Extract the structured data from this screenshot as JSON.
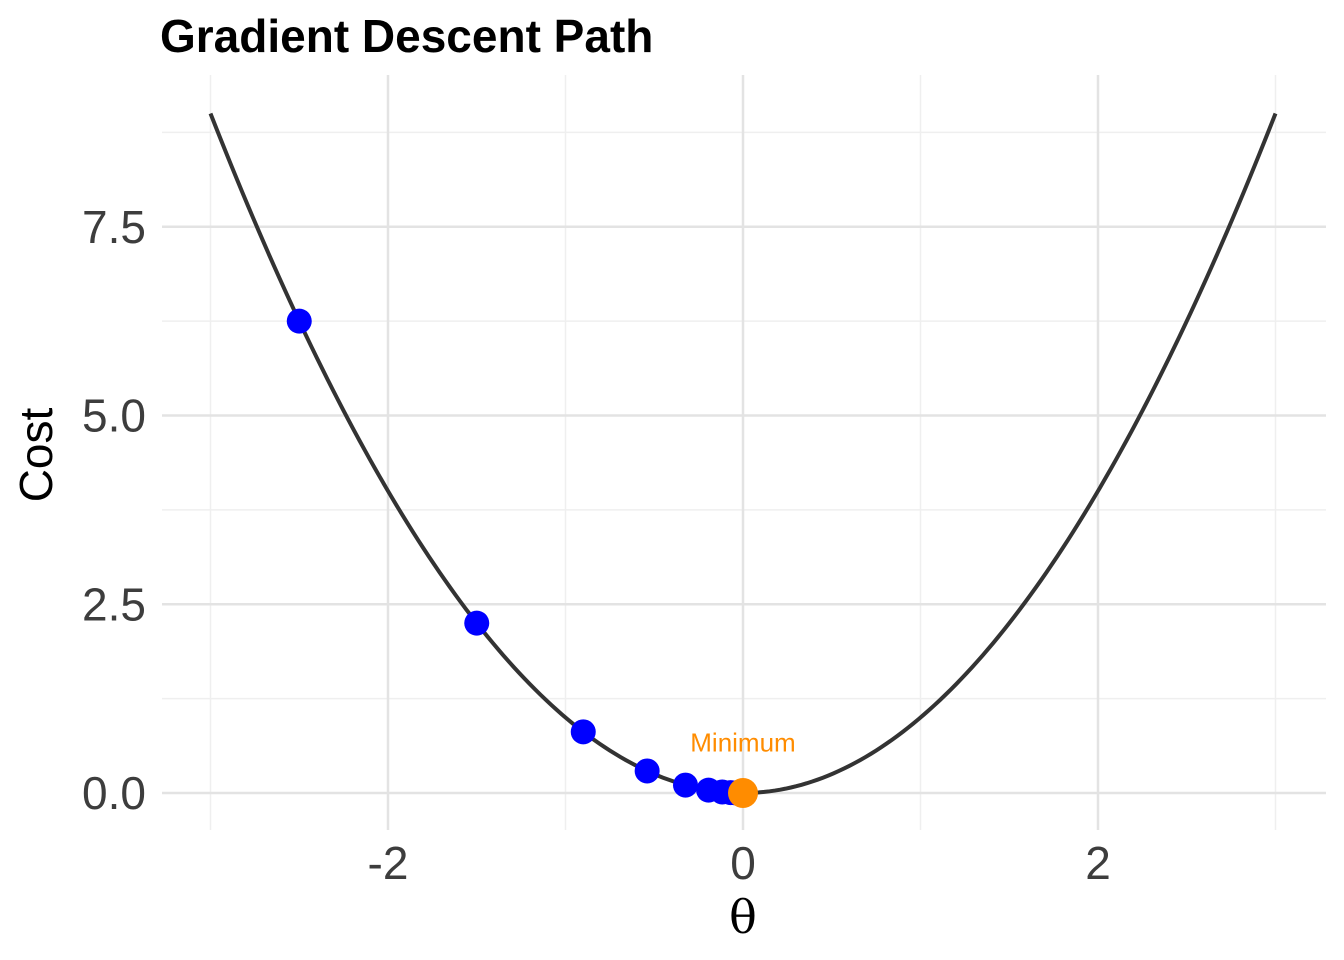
{
  "chart_data": {
    "type": "line",
    "title": "Gradient Descent Path",
    "xlabel": "θ",
    "ylabel": "Cost",
    "xlim": [
      -3,
      3
    ],
    "ylim": [
      0,
      9
    ],
    "x_ticks": [
      -2,
      0,
      2
    ],
    "x_tick_labels": [
      "-2",
      "0",
      "2"
    ],
    "y_ticks": [
      0,
      2.5,
      5,
      7.5
    ],
    "y_tick_labels": [
      "0.0",
      "2.5",
      "5.0",
      "7.5"
    ],
    "grid": true,
    "curve": {
      "function": "theta^2",
      "color": "#333333"
    },
    "series": [
      {
        "color": "#0000ff",
        "x": [
          -2.5,
          -1.5,
          -0.9,
          -0.54,
          -0.324,
          -0.194,
          -0.117,
          -0.07,
          -0.042
        ],
        "y": [
          6.25,
          2.25,
          0.81,
          0.292,
          0.105,
          0.038,
          0.014,
          0.005,
          0.002
        ]
      }
    ],
    "minimum": {
      "x": 0,
      "y": 0,
      "color": "#ff8c00"
    },
    "annotations": [
      {
        "text": "Minimum",
        "x": 0,
        "y": 0.6,
        "color": "#ff8c00"
      }
    ]
  }
}
